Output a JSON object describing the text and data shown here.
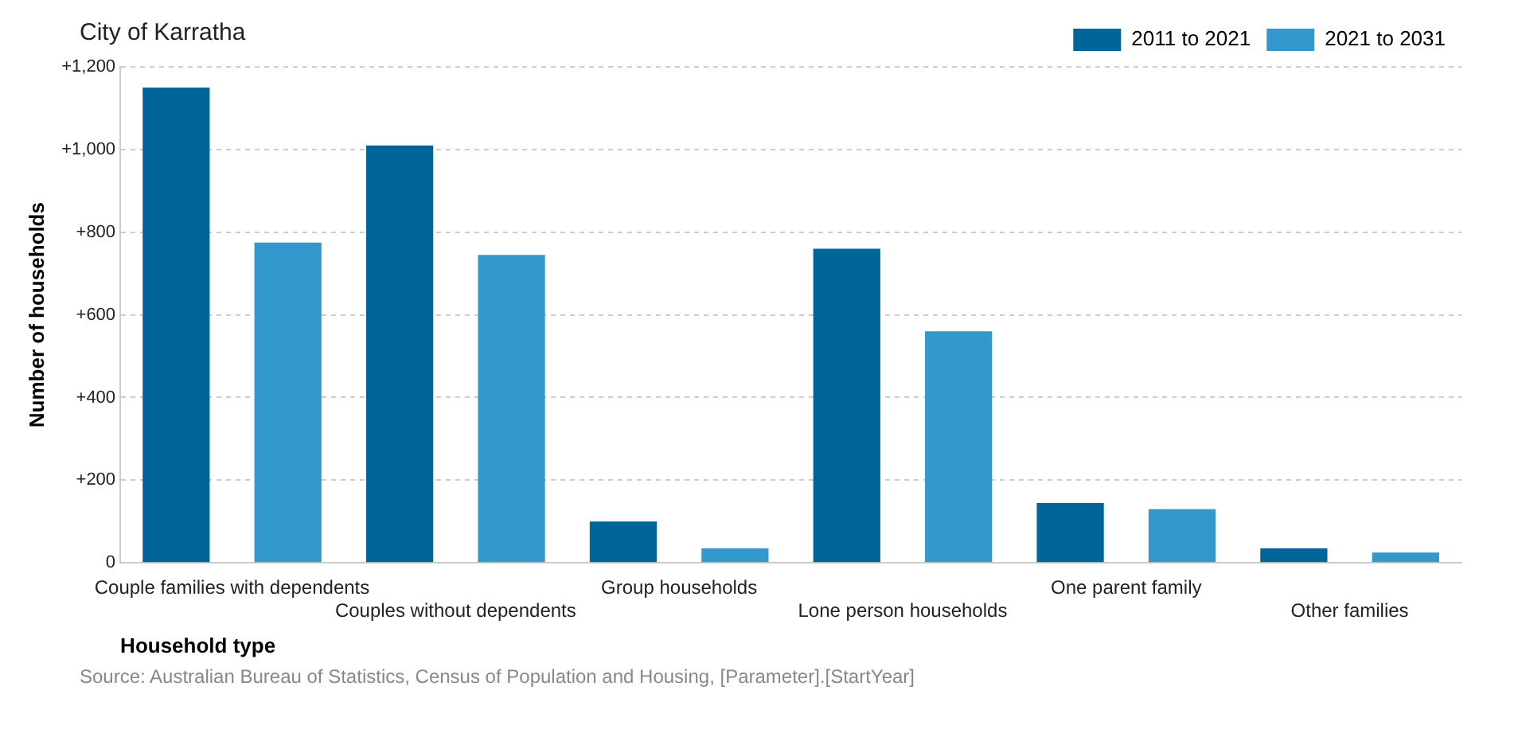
{
  "chart_data": {
    "type": "bar",
    "title": "City of Karratha",
    "xlabel": "Household type",
    "ylabel": "Number of households",
    "categories": [
      "Couple families with dependents",
      "Couples without dependents",
      "Group households",
      "Lone person households",
      "One parent family",
      "Other families"
    ],
    "series": [
      {
        "name": "2011 to 2021",
        "color": "#006699",
        "values": [
          1150,
          1010,
          100,
          760,
          145,
          35
        ]
      },
      {
        "name": "2021 to 2031",
        "color": "#3399cc",
        "values": [
          775,
          745,
          35,
          560,
          130,
          25
        ]
      }
    ],
    "ylim": [
      0,
      1200
    ],
    "yticks": [
      {
        "value": 0,
        "label": "0"
      },
      {
        "value": 200,
        "label": "+200"
      },
      {
        "value": 400,
        "label": "+400"
      },
      {
        "value": 600,
        "label": "+600"
      },
      {
        "value": 800,
        "label": "+800"
      },
      {
        "value": 1000,
        "label": "+1,000"
      },
      {
        "value": 1200,
        "label": "+1,200"
      }
    ],
    "grid": "y",
    "legend": "top right",
    "annotations": [
      "Source: Australian Bureau of Statistics, Census of Population and Housing, [Parameter].[StartYear]"
    ]
  }
}
